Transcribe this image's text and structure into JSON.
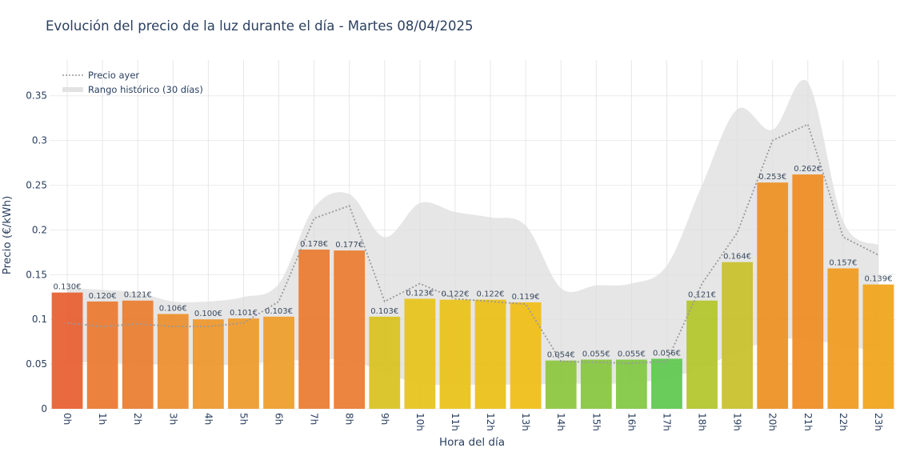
{
  "chart_data": {
    "type": "bar",
    "title": "Evolución del precio de la luz durante el día - Martes 08/04/2025",
    "xlabel": "Hora del día",
    "ylabel": "Precio (€/kWh)",
    "ylim": [
      0,
      0.39
    ],
    "y_ticks": [
      "0",
      "0.05",
      "0.1",
      "0.15",
      "0.2",
      "0.25",
      "0.3",
      "0.35"
    ],
    "categories": [
      "0h",
      "1h",
      "2h",
      "3h",
      "4h",
      "5h",
      "6h",
      "7h",
      "8h",
      "9h",
      "10h",
      "11h",
      "12h",
      "13h",
      "14h",
      "15h",
      "16h",
      "17h",
      "18h",
      "19h",
      "20h",
      "21h",
      "22h",
      "23h"
    ],
    "series": [
      {
        "values": [
          0.13,
          0.12,
          0.121,
          0.106,
          0.1,
          0.101,
          0.103,
          0.178,
          0.177,
          0.103,
          0.123,
          0.122,
          0.122,
          0.119,
          0.054,
          0.055,
          0.055,
          0.056,
          0.121,
          0.164,
          0.253,
          0.262,
          0.157,
          0.139
        ],
        "labels": [
          "0.130€",
          "0.120€",
          "0.121€",
          "0.106€",
          "0.100€",
          "0.101€",
          "0.103€",
          "0.178€",
          "0.177€",
          "0.103€",
          "0.123€",
          "0.122€",
          "0.122€",
          "0.119€",
          "0.054€",
          "0.055€",
          "0.055€",
          "0.056€",
          "0.121€",
          "0.164€",
          "0.253€",
          "0.262€",
          "0.157€",
          "0.139€"
        ],
        "colors": [
          "#e85f30",
          "#e97a30",
          "#ea7d2f",
          "#ec8e2c",
          "#ed972b",
          "#ee9a2a",
          "#ee9d2a",
          "#e97b30",
          "#e97c30",
          "#d9c21f",
          "#e6c31a",
          "#e9c219",
          "#ebbf18",
          "#f0bd14",
          "#8cc63e",
          "#86c63f",
          "#80c843",
          "#5fc84f",
          "#b3c52a",
          "#c8c02a",
          "#ed9022",
          "#ef8c21",
          "#f09a1d",
          "#f0a41a"
        ]
      },
      {
        "name": "Precio ayer",
        "style": "dotted",
        "color": "#999999",
        "values": [
          0.096,
          0.092,
          0.095,
          0.092,
          0.092,
          0.096,
          0.12,
          0.213,
          0.227,
          0.12,
          0.14,
          0.123,
          0.12,
          0.117,
          0.053,
          0.052,
          0.051,
          0.053,
          0.14,
          0.197,
          0.3,
          0.318,
          0.192,
          0.172
        ]
      },
      {
        "name": "Rango histórico (30 días)",
        "style": "band",
        "color": "#dddddd",
        "upper": [
          0.135,
          0.133,
          0.13,
          0.12,
          0.12,
          0.125,
          0.14,
          0.225,
          0.24,
          0.192,
          0.23,
          0.22,
          0.214,
          0.205,
          0.135,
          0.138,
          0.14,
          0.16,
          0.25,
          0.335,
          0.312,
          0.365,
          0.21,
          0.183
        ],
        "lower": [
          0.052,
          0.052,
          0.05,
          0.05,
          0.05,
          0.049,
          0.054,
          0.054,
          0.055,
          0.04,
          0.028,
          0.027,
          0.027,
          0.027,
          0.028,
          0.028,
          0.029,
          0.034,
          0.046,
          0.064,
          0.076,
          0.078,
          0.07,
          0.065
        ]
      }
    ],
    "legend_position": "top-left",
    "grid": true
  }
}
